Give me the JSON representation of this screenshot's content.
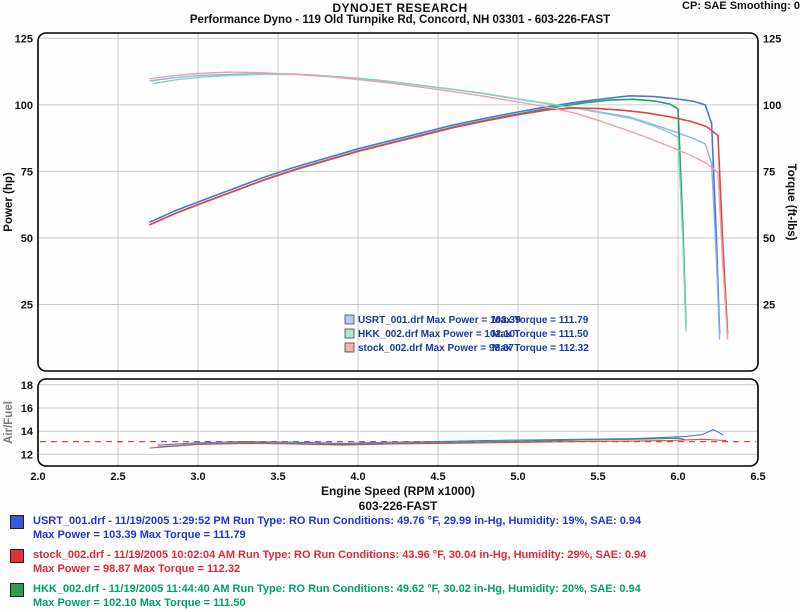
{
  "header": {
    "report_title": "DYNOJET RESEARCH",
    "report_subtitle": "Performance Dyno - 119 Old Turnpike Rd, Concord, NH 03301 - 603-226-FAST",
    "smoothing_label": "CP: SAE  Smoothing: 0"
  },
  "chart_data": {
    "type": "line",
    "title": "DYNOJET RESEARCH",
    "xlabel": "Engine Speed (RPM x1000)",
    "footer_label": "603-226-FAST",
    "x_range": [
      2.0,
      6.5
    ],
    "x_ticks": [
      "2.0",
      "2.5",
      "3.0",
      "3.5",
      "4.0",
      "4.5",
      "5.0",
      "5.5",
      "6.0",
      "6.5"
    ],
    "grid": true,
    "panels": [
      {
        "id": "main",
        "left_axis_label": "Power (hp)",
        "right_axis_label": "Torque (ft-lbs)",
        "y_range": [
          0,
          127
        ],
        "y_ticks": [
          25,
          50,
          75,
          100,
          125
        ],
        "series": [
          {
            "name": "USRT_001 Power hp",
            "color": "#4a74e0",
            "width": 1.6,
            "x": [
              2.7,
              2.85,
              3.0,
              3.2,
              3.4,
              3.6,
              3.8,
              4.0,
              4.2,
              4.4,
              4.6,
              4.8,
              5.0,
              5.2,
              5.4,
              5.55,
              5.7,
              5.85,
              6.0,
              6.1,
              6.17,
              6.21,
              6.24,
              6.26
            ],
            "y": [
              56,
              60,
              63.5,
              68,
              72.5,
              76.5,
              80,
              83.5,
              86.5,
              89.5,
              92.5,
              95,
              97.3,
              99.5,
              101.3,
              102.4,
              103.39,
              103.1,
              102.2,
              101.3,
              100.0,
              93,
              50,
              14
            ]
          },
          {
            "name": "USRT_001 Torque ft-lbs",
            "color": "#8fb0ec",
            "width": 1.4,
            "x": [
              2.7,
              2.85,
              3.0,
              3.2,
              3.4,
              3.6,
              3.8,
              4.0,
              4.2,
              4.4,
              4.6,
              4.8,
              5.0,
              5.2,
              5.4,
              5.55,
              5.7,
              5.85,
              6.0,
              6.1,
              6.17,
              6.21,
              6.24,
              6.26
            ],
            "y": [
              109,
              110.2,
              111,
              111.5,
              111.79,
              111.6,
              110.9,
              110,
              108.8,
              107.3,
              105.8,
              104.2,
              102.2,
              100.4,
              98.5,
              96.9,
              95.4,
              92.5,
              89.5,
              87.2,
              85.3,
              78,
              42,
              12
            ]
          },
          {
            "name": "HKK_002 Power hp",
            "color": "#21a06b",
            "width": 1.6,
            "x": [
              2.72,
              2.87,
              3.02,
              3.22,
              3.42,
              3.62,
              3.82,
              4.02,
              4.22,
              4.42,
              4.62,
              4.82,
              5.02,
              5.22,
              5.42,
              5.57,
              5.72,
              5.85,
              5.95,
              6.0,
              6.03,
              6.05
            ],
            "y": [
              55.5,
              59.5,
              63,
              67.5,
              72,
              76,
              79.5,
              83,
              86,
              89,
              92,
              94.5,
              96.8,
              99,
              100.8,
              101.8,
              102.1,
              101.5,
              100.3,
              98.5,
              55,
              17
            ]
          },
          {
            "name": "HKK_002 Torque ft-lbs",
            "color": "#85d6bd",
            "width": 1.4,
            "x": [
              2.72,
              2.87,
              3.02,
              3.22,
              3.42,
              3.62,
              3.82,
              4.02,
              4.22,
              4.42,
              4.62,
              4.82,
              5.02,
              5.22,
              5.42,
              5.57,
              5.72,
              5.85,
              5.95,
              6.0,
              6.03,
              6.05
            ],
            "y": [
              108,
              109.5,
              110.4,
              111.1,
              111.5,
              111.4,
              110.7,
              109.7,
              108.5,
              107,
              105.5,
              103.9,
              101.9,
              100.1,
              98.1,
              96.4,
              94.7,
              92.0,
              89.5,
              87.8,
              49,
              15
            ]
          },
          {
            "name": "stock_002 Power hp",
            "color": "#e24444",
            "width": 1.6,
            "x": [
              2.7,
              2.85,
              3.0,
              3.2,
              3.4,
              3.6,
              3.8,
              4.0,
              4.2,
              4.4,
              4.6,
              4.8,
              5.0,
              5.2,
              5.35,
              5.5,
              5.65,
              5.8,
              5.95,
              6.08,
              6.18,
              6.25,
              6.28,
              6.31
            ],
            "y": [
              55,
              59,
              62.5,
              67,
              71.5,
              75.5,
              79,
              82.5,
              85.5,
              88.5,
              91.5,
              94,
              96.3,
              98.2,
              98.87,
              98.6,
              98.0,
              97.0,
              95.5,
              93.8,
              91.8,
              88.5,
              48,
              14
            ]
          },
          {
            "name": "stock_002 Torque ft-lbs",
            "color": "#f0a0aa",
            "width": 1.4,
            "x": [
              2.7,
              2.85,
              3.0,
              3.2,
              3.4,
              3.6,
              3.8,
              4.0,
              4.2,
              4.4,
              4.6,
              4.8,
              5.0,
              5.2,
              5.35,
              5.5,
              5.65,
              5.8,
              5.95,
              6.08,
              6.18,
              6.25,
              6.28,
              6.31
            ],
            "y": [
              109.8,
              111,
              111.8,
              112.32,
              112.1,
              111.5,
              110.6,
              109.5,
              108.2,
              106.6,
              104.9,
              103.1,
              101.1,
              99.0,
              97.0,
              94.2,
              91.1,
              87.9,
              84.3,
              81.0,
              78.0,
              74.5,
              40,
              12
            ]
          }
        ],
        "legend": {
          "text_color": "#1c3a9e",
          "entries": [
            {
              "swatch": "#b9c9f2",
              "file": "USRT_001.drf",
              "power_label": "Max Power = 103.39",
              "torque_label": "Max Torque = 111.79"
            },
            {
              "swatch": "#b2e3cd",
              "file": "HKK_002.drf",
              "power_label": "Max Power = 102.10",
              "torque_label": "Max Torque = 111.50"
            },
            {
              "swatch": "#f2b3b3",
              "file": "stock_002.drf",
              "power_label": "Max Power = 98.87",
              "torque_label": "Max Torque = 112.32"
            }
          ]
        }
      },
      {
        "id": "airfuel",
        "left_axis_label": "Air/Fuel",
        "y_range": [
          11,
          18.5
        ],
        "y_ticks": [
          12,
          14,
          16,
          18
        ],
        "reference_line": {
          "value": 13.1,
          "color": "#e24444"
        },
        "series": [
          {
            "name": "USRT_001 Air-Fuel",
            "color": "#4a74e0",
            "width": 1.1,
            "x": [
              2.75,
              3.0,
              3.3,
              3.6,
              3.9,
              4.2,
              4.5,
              4.8,
              5.1,
              5.4,
              5.7,
              5.9,
              6.05,
              6.15,
              6.22,
              6.28
            ],
            "y": [
              12.8,
              13.0,
              13.1,
              13.05,
              12.95,
              13.05,
              13.1,
              13.2,
              13.25,
              13.3,
              13.35,
              13.45,
              13.55,
              13.7,
              14.15,
              13.7
            ]
          },
          {
            "name": "HKK_002 Air-Fuel",
            "color": "#21a06b",
            "width": 1.1,
            "x": [
              2.75,
              3.0,
              3.3,
              3.6,
              3.9,
              4.2,
              4.5,
              4.8,
              5.1,
              5.4,
              5.7,
              5.9,
              6.0,
              6.04
            ],
            "y": [
              12.65,
              12.9,
              13.0,
              12.95,
              12.85,
              12.95,
              13.0,
              13.1,
              13.15,
              13.25,
              13.3,
              13.35,
              13.4,
              13.3
            ]
          },
          {
            "name": "stock_002 Air-Fuel",
            "color": "#e24444",
            "width": 1.1,
            "x": [
              2.7,
              3.0,
              3.3,
              3.6,
              3.9,
              4.2,
              4.5,
              4.8,
              5.1,
              5.4,
              5.7,
              5.95,
              6.15,
              6.3
            ],
            "y": [
              12.55,
              12.85,
              12.95,
              12.9,
              12.8,
              12.9,
              12.95,
              13.0,
              13.05,
              13.1,
              13.15,
              13.2,
              13.3,
              13.2
            ]
          }
        ]
      }
    ]
  },
  "runs": [
    {
      "swatch": "#3a57d6",
      "text_color": "#2433d6",
      "line1": "USRT_001.drf - 11/19/2005 1:29:52 PM  Run Type: RO  Run Conditions: 49.76 °F, 29.99 in-Hg,  Humidity:  19%, SAE: 0.94",
      "line2": "Max Power = 103.39  Max Torque = 111.79"
    },
    {
      "swatch": "#e03038",
      "text_color": "#e02838",
      "line1": "stock_002.drf - 11/19/2005 10:02:04 AM  Run Type: RO  Run Conditions: 43.96 °F, 30.04 in-Hg,  Humidity:  29%, SAE: 0.94",
      "line2": "Max Power = 98.87  Max Torque = 112.32"
    },
    {
      "swatch": "#2e9e50",
      "text_color": "#00a070",
      "line1": "HKK_002.drf - 11/19/2005 11:44:40 AM  Run Type: RO  Run Conditions: 49.62 °F, 30.02 in-Hg,  Humidity:  20%, SAE: 0.94",
      "line2": "Max Power = 102.10  Max Torque = 111.50"
    }
  ]
}
